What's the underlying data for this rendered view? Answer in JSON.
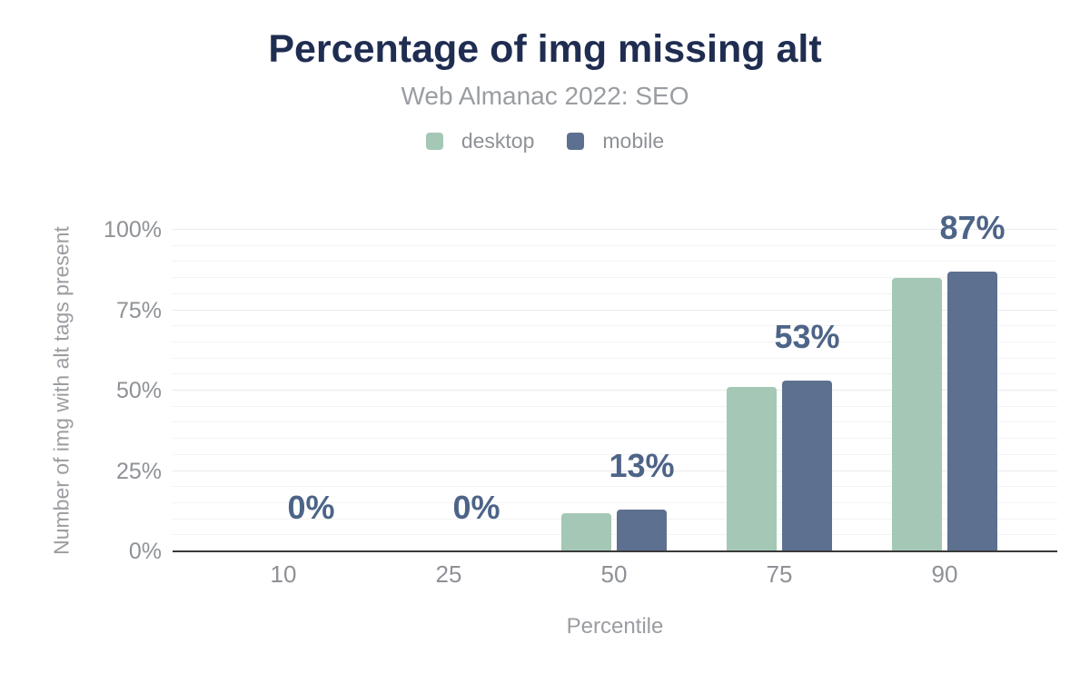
{
  "title": "Percentage of img missing alt",
  "subtitle": "Web Almanac 2022: SEO",
  "legend": {
    "items": [
      {
        "label": "desktop",
        "color": "#a4c8b5"
      },
      {
        "label": "mobile",
        "color": "#5d7090"
      }
    ]
  },
  "chart_data": {
    "type": "bar",
    "categories": [
      "10",
      "25",
      "50",
      "75",
      "90"
    ],
    "series": [
      {
        "name": "desktop",
        "color": "#a4c8b5",
        "values": [
          0,
          0,
          12,
          51,
          85
        ]
      },
      {
        "name": "mobile",
        "color": "#5d7090",
        "values": [
          0,
          0,
          13,
          53,
          87
        ]
      }
    ],
    "data_labels": [
      "0%",
      "0%",
      "13%",
      "53%",
      "87%"
    ],
    "title": "Percentage of img missing alt",
    "subtitle": "Web Almanac 2022: SEO",
    "xlabel": "Percentile",
    "ylabel": "Number of img with alt tags present",
    "ylim": [
      0,
      100
    ],
    "y_ticks": [
      {
        "value": 0,
        "label": "0%"
      },
      {
        "value": 25,
        "label": "25%"
      },
      {
        "value": 50,
        "label": "50%"
      },
      {
        "value": 75,
        "label": "75%"
      },
      {
        "value": 100,
        "label": "100%"
      }
    ],
    "grid": "horizontal minor lines every 5%, major every 25%",
    "legend_position": "top"
  },
  "colors": {
    "title_text": "#1f2d51",
    "subtitle_text": "#9a9da1",
    "axis_text": "#8e9196",
    "value_label_text": "#4d6488",
    "desktop_bar": "#a4c8b5",
    "mobile_bar": "#5d7090",
    "axis_line": "#3a3a3a",
    "gridline_minor": "#f3f3f3",
    "gridline_major": "#ebebeb"
  }
}
